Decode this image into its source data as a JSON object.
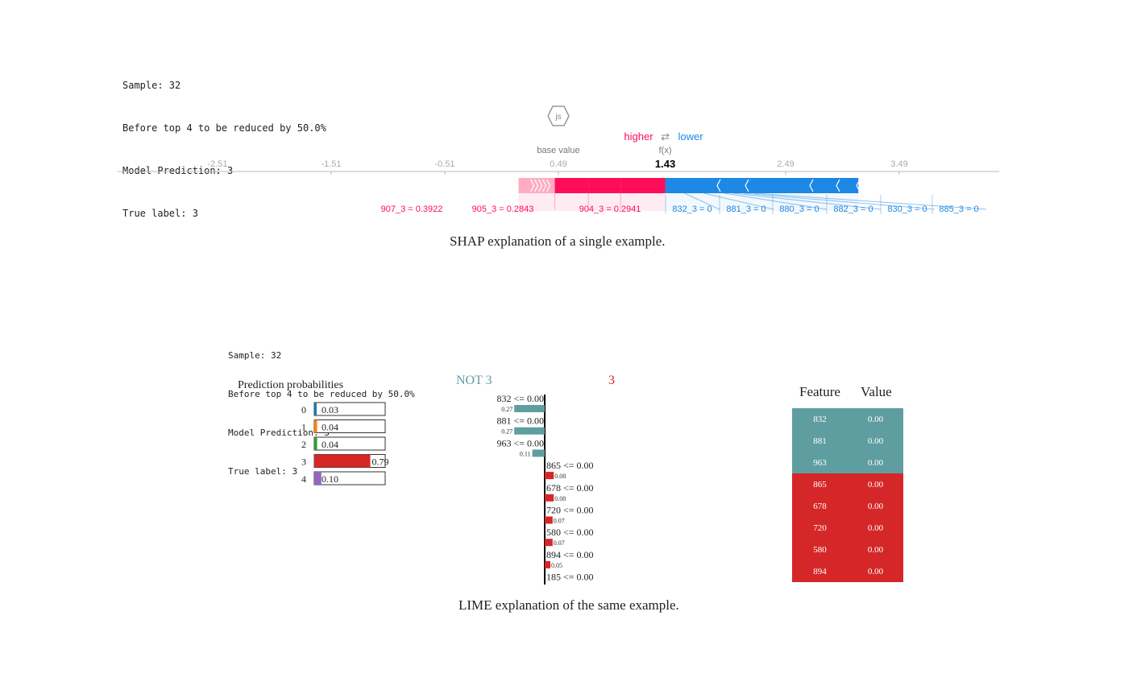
{
  "shap_info": {
    "lines": [
      "Sample: 32",
      "Before top 4 to be reduced by 50.0%",
      "Model Prediction: 3",
      "True label: 3"
    ]
  },
  "shap_badge": "js",
  "shap_caption": "SHAP explanation of a single example.",
  "lime_caption": "LIME explanation of the same example.",
  "lime_info": {
    "lines": [
      "Sample: 32",
      "Before top 4 to be reduced by 50.0%",
      "Model Prediction: 3",
      "True label: 3"
    ]
  },
  "colors": {
    "shap_positive": "#ff0d57",
    "shap_negative": "#1e88e5",
    "lime_not": "#5f9ea0",
    "lime_yes": "#d62728",
    "prob_colors": [
      "#1f77b4",
      "#ff7f0e",
      "#2ca02c",
      "#d62728",
      "#9467bd"
    ]
  },
  "chart_data": [
    {
      "type": "bar",
      "name_label": "",
      "legend": {
        "higher": "higher",
        "arrow": "⇄",
        "lower": "lower"
      },
      "base_value_label": "base value",
      "base_value": 0.49,
      "fx_label": "f(x)",
      "fx_value": 1.43,
      "fx_text": "1.43",
      "ticks": [
        -2.51,
        -1.51,
        -0.51,
        0.49,
        2.49,
        3.49
      ],
      "tick_labels": [
        "-2.51",
        "-1.51",
        "-0.51",
        "0.49",
        "2.49",
        "3.49"
      ],
      "xlim": [
        -3.3,
        4.45
      ],
      "positive_features": [
        {
          "label": "907_3 = 0.3922",
          "value": 0.3922
        },
        {
          "label": "905_3 = 0.2843",
          "value": 0.2843
        },
        {
          "label": "904_3 = 0.2941",
          "value": 0.2941
        }
      ],
      "positive_remainder": 0.32,
      "negative_features": [
        {
          "label": "832_3 = 0",
          "value": 0.17
        },
        {
          "label": "881_3 = 0",
          "value": 0.17
        },
        {
          "label": "880_3 = 0",
          "value": 0.18
        },
        {
          "label": "882_3 = 0",
          "value": 0.08
        },
        {
          "label": "830_3 = 0",
          "value": 0.09
        },
        {
          "label": "885_3 = 0",
          "value": 0.09
        }
      ],
      "negative_remainder": 0.92
    },
    {
      "type": "bar",
      "title": "Prediction probabilities",
      "categories": [
        "0",
        "1",
        "2",
        "3",
        "4"
      ],
      "values": [
        0.03,
        0.04,
        0.04,
        0.79,
        0.1
      ],
      "value_labels": [
        "0.03",
        "0.04",
        "0.04",
        "0.79",
        "0.10"
      ],
      "xlim": [
        0,
        1
      ]
    },
    {
      "type": "bar",
      "class_labels": {
        "negative": "NOT 3",
        "positive": "3"
      },
      "features": [
        {
          "label": "832 <= 0.00",
          "value": -0.27,
          "value_label": "0.27"
        },
        {
          "label": "881 <= 0.00",
          "value": -0.27,
          "value_label": "0.27"
        },
        {
          "label": "963 <= 0.00",
          "value": -0.11,
          "value_label": "0.11"
        },
        {
          "label": "865 <= 0.00",
          "value": 0.08,
          "value_label": "0.08"
        },
        {
          "label": "678 <= 0.00",
          "value": 0.08,
          "value_label": "0.08"
        },
        {
          "label": "720 <= 0.00",
          "value": 0.07,
          "value_label": "0.07"
        },
        {
          "label": "580 <= 0.00",
          "value": 0.07,
          "value_label": "0.07"
        },
        {
          "label": "894 <= 0.00",
          "value": 0.05,
          "value_label": "0.05"
        },
        {
          "label": "185 <= 0.00",
          "value": 0.0,
          "value_label": ""
        }
      ],
      "xlim": [
        -0.27,
        0.27
      ]
    },
    {
      "type": "table",
      "columns": [
        "Feature",
        "Value"
      ],
      "rows": [
        {
          "feature": "832",
          "value": "0.00",
          "class": "negative"
        },
        {
          "feature": "881",
          "value": "0.00",
          "class": "negative"
        },
        {
          "feature": "963",
          "value": "0.00",
          "class": "negative"
        },
        {
          "feature": "865",
          "value": "0.00",
          "class": "positive"
        },
        {
          "feature": "678",
          "value": "0.00",
          "class": "positive"
        },
        {
          "feature": "720",
          "value": "0.00",
          "class": "positive"
        },
        {
          "feature": "580",
          "value": "0.00",
          "class": "positive"
        },
        {
          "feature": "894",
          "value": "0.00",
          "class": "positive"
        }
      ]
    }
  ]
}
